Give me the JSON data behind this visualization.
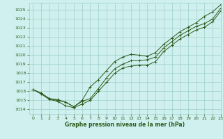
{
  "bg_color": "#cff0ee",
  "grid_color": "#9dcfca",
  "line_color": "#2d5a1b",
  "xlim": [
    -0.5,
    23
  ],
  "ylim": [
    1013.5,
    1025.8
  ],
  "yticks": [
    1014,
    1015,
    1016,
    1017,
    1018,
    1019,
    1020,
    1021,
    1022,
    1023,
    1024,
    1025
  ],
  "xticks": [
    0,
    1,
    2,
    3,
    4,
    5,
    6,
    7,
    8,
    9,
    10,
    11,
    12,
    13,
    14,
    15,
    16,
    17,
    18,
    19,
    20,
    21,
    22,
    23
  ],
  "xlabel": "Graphe pression niveau de la mer (hPa)",
  "series1": [
    1016.2,
    1015.8,
    1015.2,
    1015.0,
    1014.8,
    1014.3,
    1014.9,
    1015.2,
    1016.3,
    1017.5,
    1018.5,
    1019.0,
    1019.4,
    1019.4,
    1019.5,
    1019.8,
    1020.8,
    1021.5,
    1022.2,
    1022.7,
    1023.2,
    1023.5,
    1024.0,
    1025.2
  ],
  "series2": [
    1016.2,
    1015.7,
    1015.1,
    1014.9,
    1014.4,
    1014.2,
    1014.6,
    1015.0,
    1016.0,
    1017.0,
    1018.0,
    1018.6,
    1018.8,
    1018.9,
    1018.9,
    1019.3,
    1020.4,
    1021.1,
    1021.8,
    1022.3,
    1022.8,
    1023.1,
    1023.7,
    1024.9
  ],
  "series3": [
    1016.2,
    1015.8,
    1015.2,
    1015.1,
    1014.8,
    1014.3,
    1015.0,
    1016.5,
    1017.3,
    1018.3,
    1019.3,
    1019.8,
    1020.1,
    1020.0,
    1019.9,
    1020.3,
    1021.2,
    1021.9,
    1022.6,
    1023.1,
    1023.6,
    1024.3,
    1024.8,
    1025.6
  ]
}
